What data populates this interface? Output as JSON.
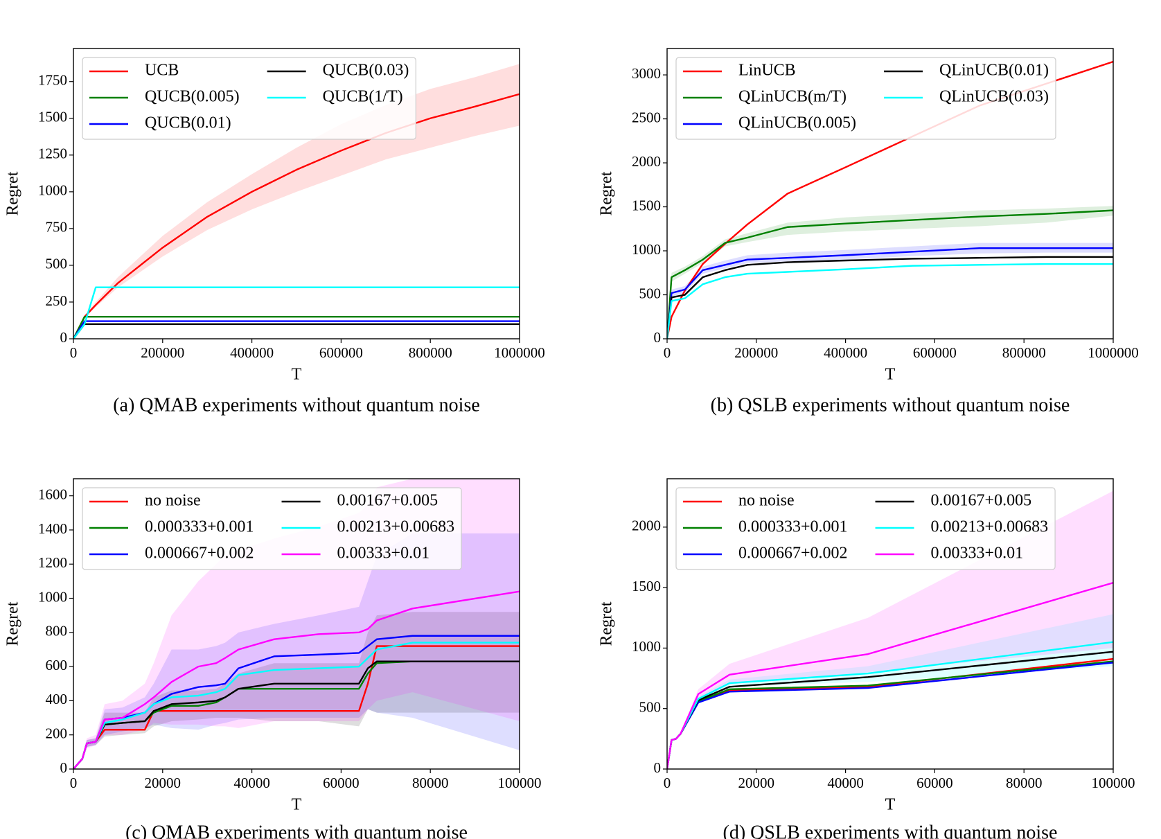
{
  "chart_data": [
    {
      "type": "line",
      "caption": "(a) QMAB experiments without quantum noise",
      "x_label": "T",
      "y_label": "Regret",
      "xlim": [
        0,
        1000000
      ],
      "ylim": [
        0,
        1975
      ],
      "xticks": [
        0,
        200000,
        400000,
        600000,
        800000,
        1000000
      ],
      "yticks": [
        0,
        250,
        500,
        750,
        1000,
        1250,
        1500,
        1750
      ],
      "legend": "upper left",
      "legend_columns": 2,
      "x": [
        0,
        25000,
        50000,
        100000,
        200000,
        300000,
        400000,
        500000,
        600000,
        700000,
        800000,
        900000,
        1000000
      ],
      "series": [
        {
          "name": "UCB",
          "color": "#ff0000",
          "values": [
            0,
            150,
            230,
            380,
            620,
            830,
            1000,
            1150,
            1280,
            1400,
            1500,
            1580,
            1665
          ],
          "band": {
            "lower": [
              0,
              140,
              215,
              350,
              560,
              740,
              880,
              1000,
              1110,
              1220,
              1300,
              1380,
              1450
            ],
            "upper": [
              0,
              160,
              250,
              420,
              700,
              930,
              1120,
              1300,
              1460,
              1590,
              1700,
              1780,
              1870
            ]
          }
        },
        {
          "name": "QUCB(0.005)",
          "color": "#008000",
          "values": [
            0,
            150,
            150,
            150,
            150,
            150,
            150,
            150,
            150,
            150,
            150,
            150,
            150
          ]
        },
        {
          "name": "QUCB(0.01)",
          "color": "#0000ff",
          "values": [
            0,
            120,
            120,
            120,
            120,
            120,
            120,
            120,
            120,
            120,
            120,
            120,
            120
          ]
        },
        {
          "name": "QUCB(0.03)",
          "color": "#000000",
          "values": [
            0,
            100,
            100,
            100,
            100,
            100,
            100,
            100,
            100,
            100,
            100,
            100,
            100
          ]
        },
        {
          "name": "QUCB(1/T)",
          "color": "#00ffff",
          "values": [
            0,
            100,
            350,
            350,
            350,
            350,
            350,
            350,
            350,
            350,
            350,
            350,
            350
          ]
        }
      ]
    },
    {
      "type": "line",
      "caption": "(b) QSLB experiments without quantum noise",
      "x_label": "T",
      "y_label": "Regret",
      "xlim": [
        0,
        1000000
      ],
      "ylim": [
        0,
        3300
      ],
      "xticks": [
        0,
        200000,
        400000,
        600000,
        800000,
        1000000
      ],
      "yticks": [
        0,
        500,
        1000,
        1500,
        2000,
        2500,
        3000
      ],
      "legend": "upper left",
      "legend_columns": 2,
      "x": [
        0,
        10000,
        40000,
        80000,
        130000,
        180000,
        270000,
        400000,
        550000,
        700000,
        850000,
        1000000
      ],
      "series": [
        {
          "name": "LinUCB",
          "color": "#ff0000",
          "values": [
            0,
            250,
            550,
            850,
            1080,
            1300,
            1650,
            1950,
            2300,
            2650,
            2900,
            3150
          ]
        },
        {
          "name": "QLinUCB(m/T)",
          "color": "#008000",
          "values": [
            0,
            700,
            780,
            900,
            1090,
            1150,
            1270,
            1310,
            1350,
            1390,
            1420,
            1460
          ],
          "band": {
            "lower": [
              0,
              650,
              740,
              860,
              1050,
              1100,
              1180,
              1220,
              1250,
              1280,
              1320,
              1400
            ],
            "upper": [
              0,
              750,
              820,
              940,
              1130,
              1200,
              1320,
              1380,
              1420,
              1460,
              1480,
              1510
            ]
          }
        },
        {
          "name": "QLinUCB(0.005)",
          "color": "#0000ff",
          "values": [
            0,
            520,
            560,
            780,
            840,
            900,
            920,
            950,
            990,
            1030,
            1030,
            1030
          ],
          "band": {
            "lower": [
              0,
              480,
              520,
              740,
              800,
              860,
              880,
              900,
              940,
              970,
              980,
              980
            ],
            "upper": [
              0,
              560,
              600,
              820,
              890,
              950,
              980,
              1010,
              1050,
              1090,
              1090,
              1090
            ]
          }
        },
        {
          "name": "QLinUCB(0.01)",
          "color": "#000000",
          "values": [
            0,
            470,
            500,
            700,
            780,
            840,
            870,
            890,
            910,
            920,
            930,
            930
          ]
        },
        {
          "name": "QLinUCB(0.03)",
          "color": "#00ffff",
          "values": [
            0,
            430,
            460,
            620,
            700,
            740,
            760,
            790,
            830,
            840,
            850,
            850
          ]
        }
      ]
    },
    {
      "type": "line",
      "caption": "(c) QMAB experiments with quantum noise",
      "x_label": "T",
      "y_label": "Regret",
      "xlim": [
        0,
        100000
      ],
      "ylim": [
        0,
        1700
      ],
      "xticks": [
        0,
        20000,
        40000,
        60000,
        80000,
        100000
      ],
      "yticks": [
        0,
        200,
        400,
        600,
        800,
        1000,
        1200,
        1400,
        1600
      ],
      "legend": "upper left",
      "legend_columns": 2,
      "x": [
        0,
        2000,
        3000,
        5000,
        7000,
        11000,
        16000,
        18000,
        22000,
        28000,
        32000,
        34000,
        37000,
        45000,
        55000,
        64000,
        66000,
        68000,
        76000,
        100000
      ],
      "series": [
        {
          "name": "no noise",
          "color": "#ff0000",
          "values": [
            0,
            60,
            150,
            160,
            230,
            230,
            230,
            340,
            340,
            340,
            340,
            340,
            340,
            340,
            340,
            340,
            500,
            720,
            720,
            720
          ]
        },
        {
          "name": "0.000333+0.001",
          "color": "#008000",
          "values": [
            0,
            60,
            150,
            160,
            260,
            270,
            280,
            330,
            370,
            370,
            390,
            420,
            470,
            470,
            470,
            470,
            560,
            620,
            630,
            630
          ]
        },
        {
          "name": "0.000667+0.002",
          "color": "#0000ff",
          "values": [
            0,
            60,
            150,
            160,
            290,
            300,
            330,
            380,
            440,
            480,
            490,
            500,
            590,
            660,
            670,
            680,
            720,
            760,
            780,
            780
          ],
          "band": {
            "lower": [
              0,
              50,
              130,
              140,
              200,
              220,
              240,
              260,
              240,
              230,
              260,
              270,
              290,
              300,
              300,
              300,
              350,
              330,
              300,
              110
            ],
            "upper": [
              0,
              70,
              170,
              180,
              350,
              360,
              420,
              500,
              700,
              700,
              720,
              740,
              800,
              850,
              900,
              950,
              1100,
              1250,
              1380,
              1380
            ]
          }
        },
        {
          "name": "0.00167+0.005",
          "color": "#000000",
          "values": [
            0,
            60,
            150,
            160,
            260,
            270,
            280,
            340,
            380,
            390,
            400,
            420,
            470,
            500,
            500,
            500,
            590,
            630,
            630,
            630
          ],
          "band": {
            "lower": [
              0,
              50,
              130,
              140,
              190,
              200,
              210,
              250,
              280,
              290,
              300,
              300,
              300,
              280,
              280,
              250,
              350,
              330,
              330,
              330
            ],
            "upper": [
              0,
              70,
              170,
              180,
              330,
              330,
              330,
              420,
              460,
              460,
              470,
              500,
              560,
              620,
              620,
              620,
              800,
              900,
              920,
              920
            ]
          }
        },
        {
          "name": "0.00213+0.00683",
          "color": "#00ffff",
          "values": [
            0,
            60,
            150,
            160,
            270,
            290,
            330,
            380,
            420,
            430,
            450,
            470,
            550,
            580,
            590,
            600,
            650,
            700,
            740,
            740
          ]
        },
        {
          "name": "0.00333+0.01",
          "color": "#ff00ff",
          "values": [
            0,
            60,
            150,
            160,
            290,
            300,
            380,
            420,
            510,
            600,
            620,
            650,
            700,
            760,
            790,
            800,
            820,
            870,
            940,
            1040
          ],
          "band": {
            "lower": [
              0,
              50,
              120,
              140,
              200,
              200,
              230,
              270,
              260,
              260,
              250,
              250,
              240,
              280,
              280,
              280,
              350,
              400,
              450,
              280
            ],
            "upper": [
              0,
              70,
              180,
              200,
              380,
              400,
              500,
              620,
              900,
              1100,
              1200,
              1250,
              1280,
              1350,
              1420,
              1500,
              1550,
              1650,
              1700,
              1850
            ]
          }
        }
      ]
    },
    {
      "type": "line",
      "caption": "(d) QSLB experiments with quantum noise",
      "x_label": "T",
      "y_label": "Regret",
      "xlim": [
        0,
        100000
      ],
      "ylim": [
        0,
        2400
      ],
      "xticks": [
        0,
        20000,
        40000,
        60000,
        80000,
        100000
      ],
      "yticks": [
        0,
        500,
        1000,
        1500,
        2000
      ],
      "legend": "upper left",
      "legend_columns": 2,
      "x": [
        0,
        1000,
        2000,
        3000,
        7000,
        14000,
        45000,
        100000
      ],
      "series": [
        {
          "name": "no noise",
          "color": "#ff0000",
          "values": [
            0,
            240,
            250,
            290,
            560,
            650,
            680,
            910
          ]
        },
        {
          "name": "0.000333+0.001",
          "color": "#008000",
          "values": [
            0,
            240,
            250,
            290,
            560,
            660,
            690,
            890
          ]
        },
        {
          "name": "0.000667+0.002",
          "color": "#0000ff",
          "values": [
            0,
            240,
            250,
            290,
            550,
            640,
            670,
            880
          ]
        },
        {
          "name": "0.00167+0.005",
          "color": "#000000",
          "values": [
            0,
            240,
            250,
            290,
            570,
            680,
            760,
            970
          ]
        },
        {
          "name": "0.00213+0.00683",
          "color": "#00ffff",
          "values": [
            0,
            240,
            250,
            290,
            580,
            710,
            790,
            1050
          ],
          "band": {
            "lower": [
              0,
              230,
              240,
              280,
              560,
              680,
              720,
              850
            ],
            "upper": [
              0,
              250,
              260,
              300,
              600,
              740,
              850,
              1280
            ]
          }
        },
        {
          "name": "0.00333+0.01",
          "color": "#ff00ff",
          "values": [
            0,
            240,
            250,
            290,
            620,
            780,
            950,
            1540
          ],
          "band": {
            "lower": [
              0,
              230,
              240,
              280,
              580,
              700,
              800,
              1000
            ],
            "upper": [
              0,
              250,
              260,
              300,
              660,
              870,
              1250,
              2300
            ]
          }
        }
      ]
    }
  ]
}
